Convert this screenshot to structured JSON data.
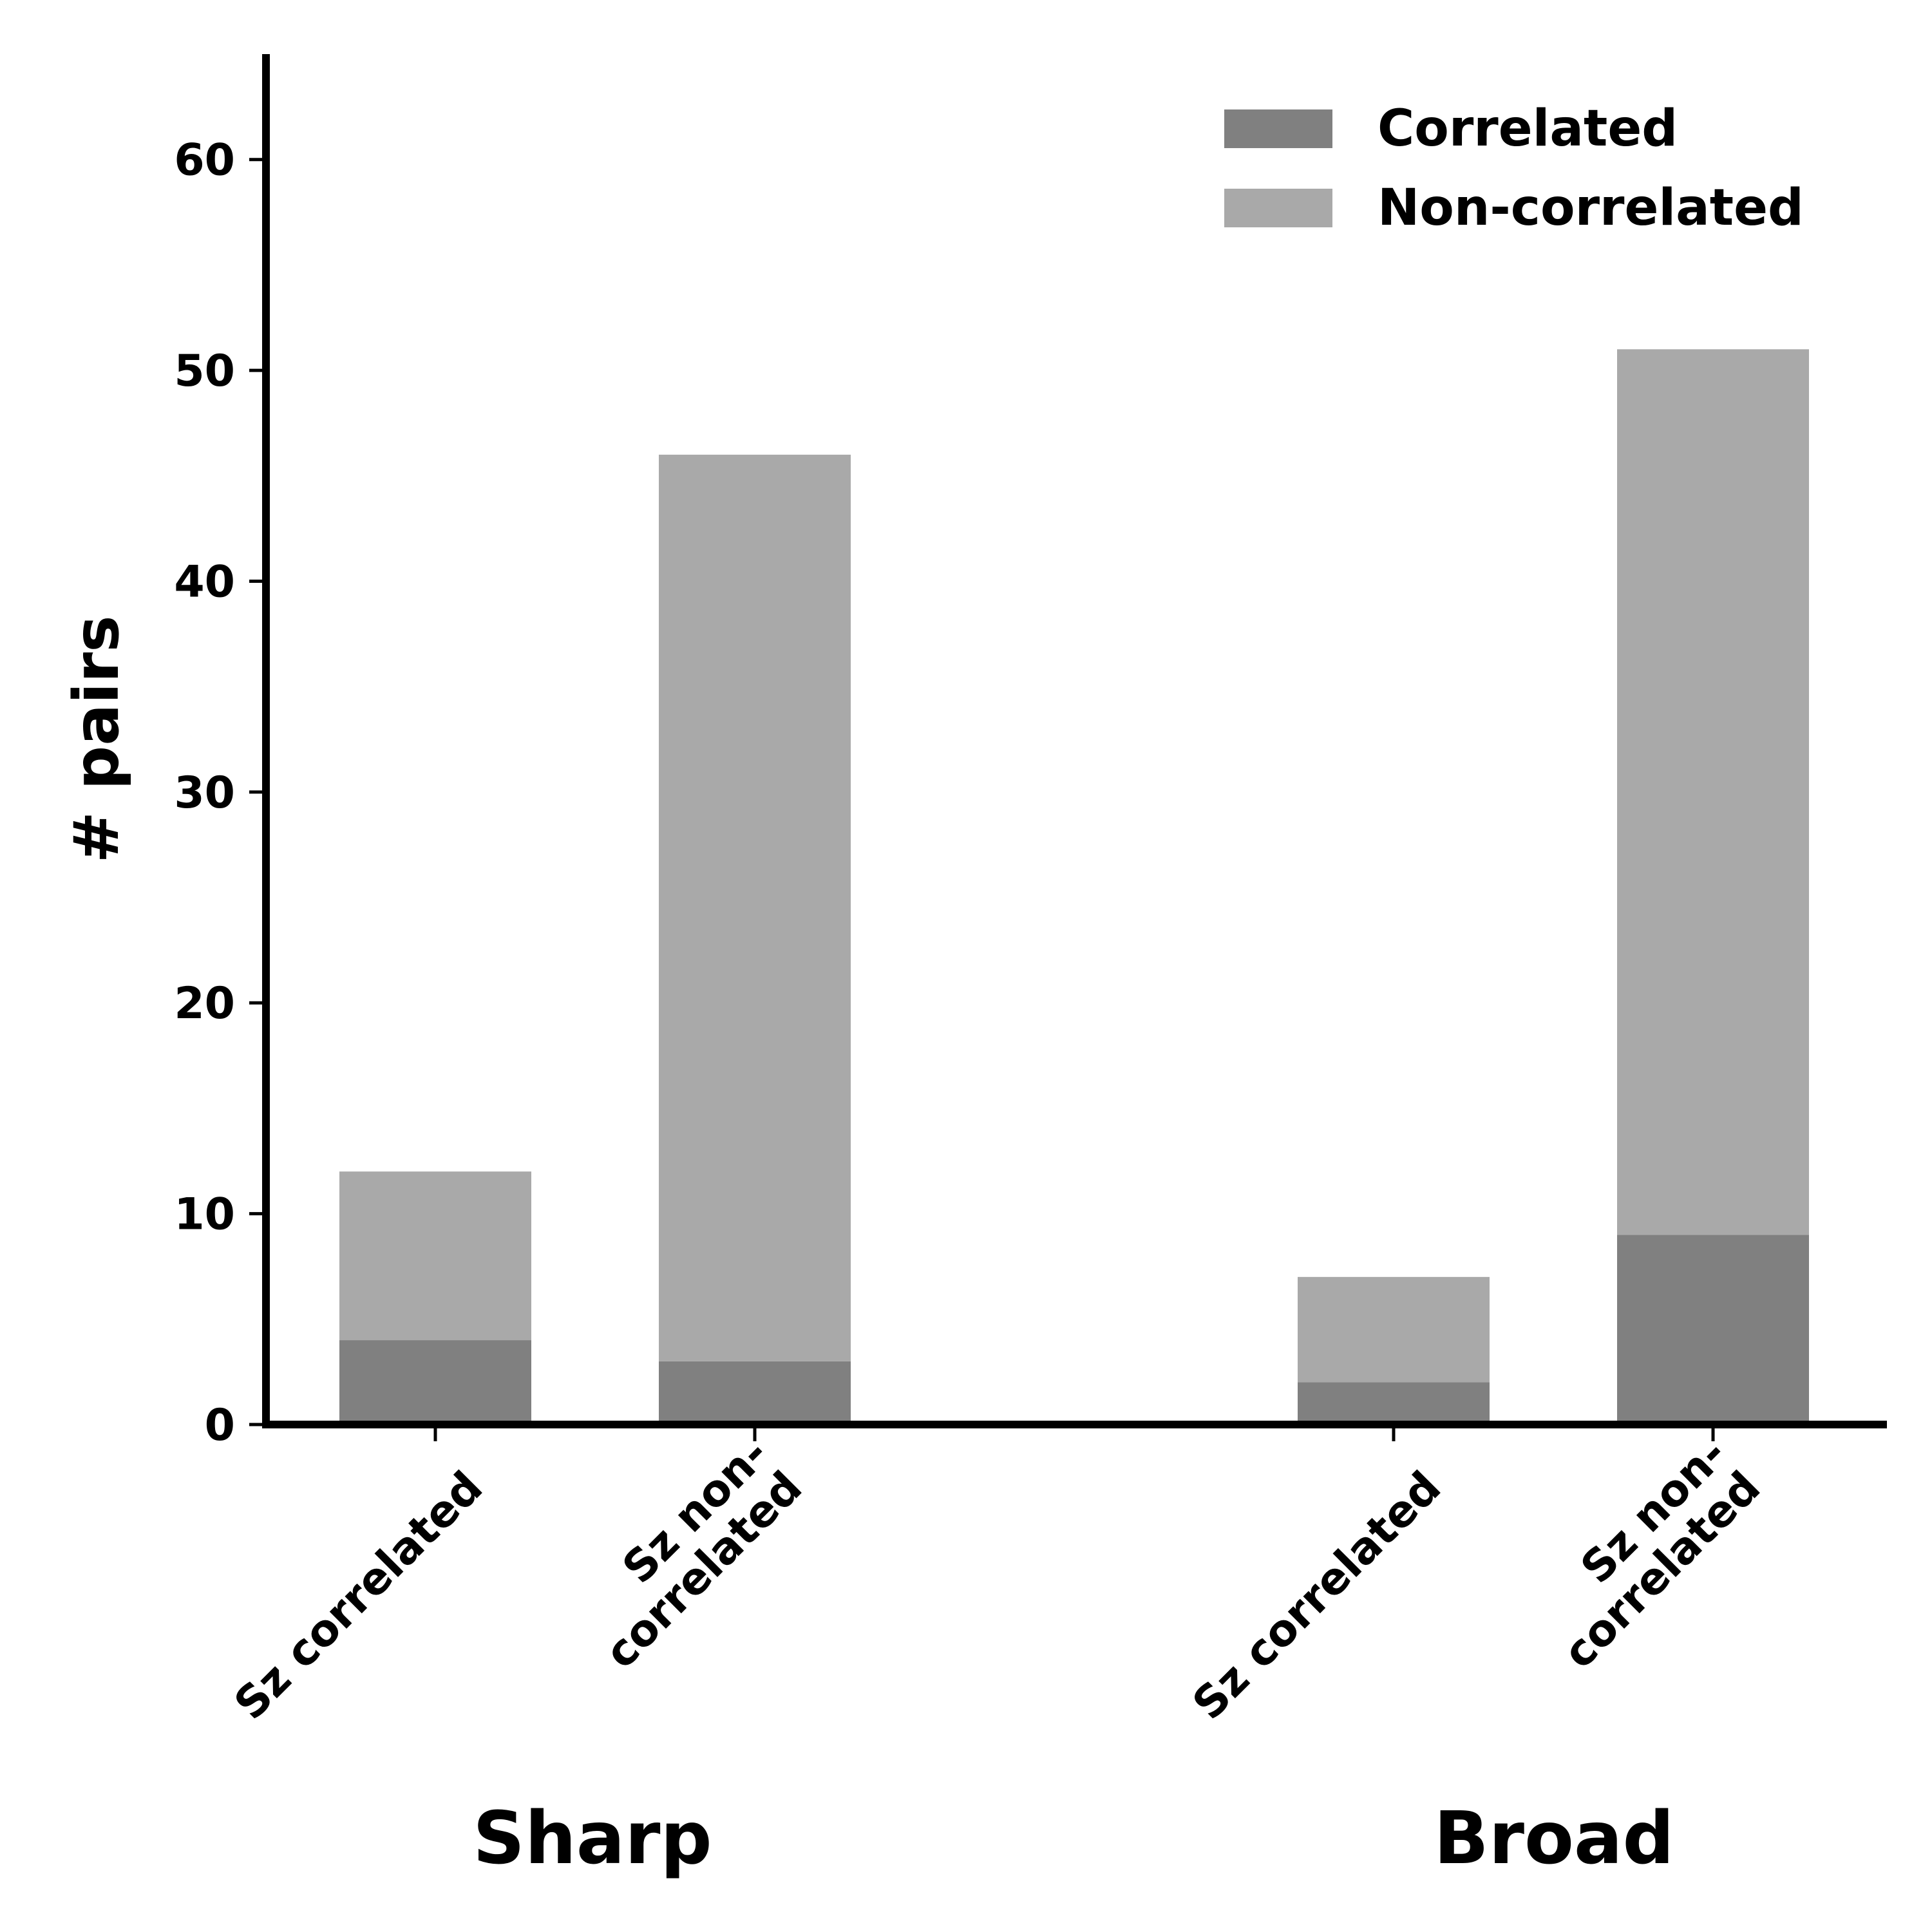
{
  "chart_data": {
    "type": "bar",
    "stacked": true,
    "categories": [
      "Sz correlated",
      "Sz non-correlated",
      "Sz correlated",
      "Sz non-correlated"
    ],
    "category_label_lines": [
      [
        "Sz correlated"
      ],
      [
        "Sz non-",
        "correlated"
      ],
      [
        "Sz correlated"
      ],
      [
        "Sz non-",
        "correlated"
      ]
    ],
    "groups": [
      {
        "label": "Sharp",
        "category_indices": [
          0,
          1
        ]
      },
      {
        "label": "Broad",
        "category_indices": [
          2,
          3
        ]
      }
    ],
    "series": [
      {
        "name": "Correlated",
        "values": [
          4,
          3,
          2,
          9
        ],
        "color": "#808080"
      },
      {
        "name": "Non-correlated",
        "values": [
          8,
          43,
          5,
          42
        ],
        "color": "#a9a9a9"
      }
    ],
    "totals": [
      12,
      46,
      7,
      51
    ],
    "xlabel": "",
    "ylabel": "# pairs",
    "ylim": [
      0,
      65
    ],
    "yticks": [
      0,
      10,
      20,
      30,
      40,
      50,
      60
    ],
    "grid": false,
    "legend_position": "top-right"
  }
}
